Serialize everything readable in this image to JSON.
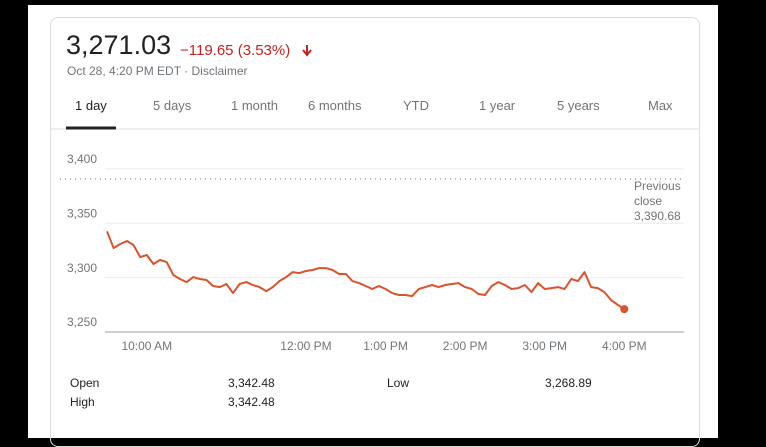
{
  "header": {
    "price": "3,271.03",
    "change": "−119.65 (3.53%)",
    "timestamp": "Oct 28, 4:20 PM EDT ·",
    "disclaimer": "Disclaimer"
  },
  "tabs": [
    "1 day",
    "5 days",
    "1 month",
    "6 months",
    "YTD",
    "1 year",
    "5 years",
    "Max"
  ],
  "chart_data": {
    "type": "line",
    "x": [
      570,
      575,
      580,
      585,
      590,
      595,
      600,
      605,
      610,
      615,
      620,
      625,
      630,
      635,
      640,
      645,
      650,
      655,
      660,
      665,
      670,
      675,
      680,
      685,
      690,
      695,
      700,
      705,
      710,
      715,
      720,
      725,
      730,
      735,
      740,
      745,
      750,
      755,
      760,
      765,
      770,
      775,
      780,
      785,
      790,
      795,
      800,
      805,
      810,
      815,
      820,
      825,
      830,
      835,
      840,
      845,
      850,
      855,
      860,
      865,
      870,
      875,
      880,
      885,
      890,
      895,
      900,
      905,
      910,
      915,
      920,
      925,
      930,
      935,
      940,
      945,
      950,
      955,
      960
    ],
    "series": [
      {
        "color": "#d9532c",
        "values": [
          3342.48,
          3327.2,
          3330.9,
          3333.7,
          3330.0,
          3318.9,
          3320.8,
          3312.5,
          3316.2,
          3314.3,
          3302.4,
          3298.7,
          3295.9,
          3300.5,
          3298.7,
          3297.8,
          3292.3,
          3291.3,
          3294.1,
          3285.8,
          3294.1,
          3295.9,
          3293.2,
          3291.3,
          3287.6,
          3291.3,
          3296.8,
          3300.5,
          3305.1,
          3304.2,
          3306.1,
          3307.0,
          3308.8,
          3308.8,
          3307.0,
          3303.3,
          3303.3,
          3296.8,
          3295.0,
          3292.3,
          3289.5,
          3292.3,
          3289.5,
          3285.8,
          3284.0,
          3284.0,
          3283.0,
          3289.5,
          3291.3,
          3293.2,
          3291.3,
          3293.2,
          3294.1,
          3295.0,
          3291.3,
          3289.5,
          3284.9,
          3284.0,
          3292.3,
          3295.9,
          3293.2,
          3289.5,
          3290.4,
          3293.2,
          3286.7,
          3295.0,
          3289.5,
          3290.4,
          3291.3,
          3289.5,
          3298.7,
          3296.8,
          3305.1,
          3291.3,
          3290.4,
          3286.7,
          3279.4,
          3275.0,
          3271.03
        ]
      }
    ],
    "xlim": [
      570,
      1005
    ],
    "xticks": [
      {
        "value": 600,
        "label": "10:00 AM"
      },
      {
        "value": 720,
        "label": "12:00 PM"
      },
      {
        "value": 780,
        "label": "1:00 PM"
      },
      {
        "value": 840,
        "label": "2:00 PM"
      },
      {
        "value": 900,
        "label": "3:00 PM"
      },
      {
        "value": 960,
        "label": "4:00 PM"
      }
    ],
    "ylim": [
      3250,
      3410
    ],
    "yticks": [
      {
        "value": 3250,
        "label": "3,250"
      },
      {
        "value": 3300,
        "label": "3,300"
      },
      {
        "value": 3350,
        "label": "3,350"
      },
      {
        "value": 3400,
        "label": "3,400"
      }
    ],
    "grid": true,
    "previous_close": {
      "label": "Previous close",
      "value": 3390.68,
      "value_label": "3,390.68"
    }
  },
  "stats": {
    "rows": [
      [
        "Open",
        "3,342.48",
        "Low",
        "3,268.89"
      ],
      [
        "High",
        "3,342.48"
      ]
    ]
  }
}
